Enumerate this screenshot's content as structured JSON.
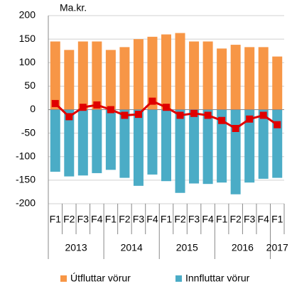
{
  "chart_data": {
    "type": "bar",
    "unit_label": "Ma.kr.",
    "categories": [
      "F1",
      "F2",
      "F3",
      "F4",
      "F1",
      "F2",
      "F3",
      "F4",
      "F1",
      "F2",
      "F3",
      "F4",
      "F1",
      "F2",
      "F3",
      "F4",
      "F1"
    ],
    "groups": [
      "2013",
      "2014",
      "2015",
      "2016",
      "2017"
    ],
    "series": [
      {
        "name": "Útfluttar vörur",
        "color": "#f79646",
        "values": [
          145,
          127,
          145,
          145,
          127,
          133,
          150,
          155,
          160,
          163,
          145,
          145,
          130,
          138,
          133,
          133,
          113
        ]
      },
      {
        "name": "Innfluttar vörur",
        "color": "#4bacc6",
        "values": [
          -132,
          -142,
          -140,
          -135,
          -128,
          -145,
          -162,
          -138,
          -152,
          -177,
          -157,
          -158,
          -155,
          -180,
          -155,
          -147,
          -145
        ]
      }
    ],
    "line": {
      "color": "#e00000",
      "values": [
        13,
        -15,
        5,
        10,
        0,
        -12,
        -10,
        18,
        5,
        -12,
        -8,
        -12,
        -23,
        -40,
        -20,
        -12,
        -32
      ]
    },
    "ylim": [
      -200,
      200
    ],
    "yticks": [
      -200,
      -150,
      -100,
      -50,
      0,
      50,
      100,
      150,
      200
    ],
    "grid": true
  }
}
